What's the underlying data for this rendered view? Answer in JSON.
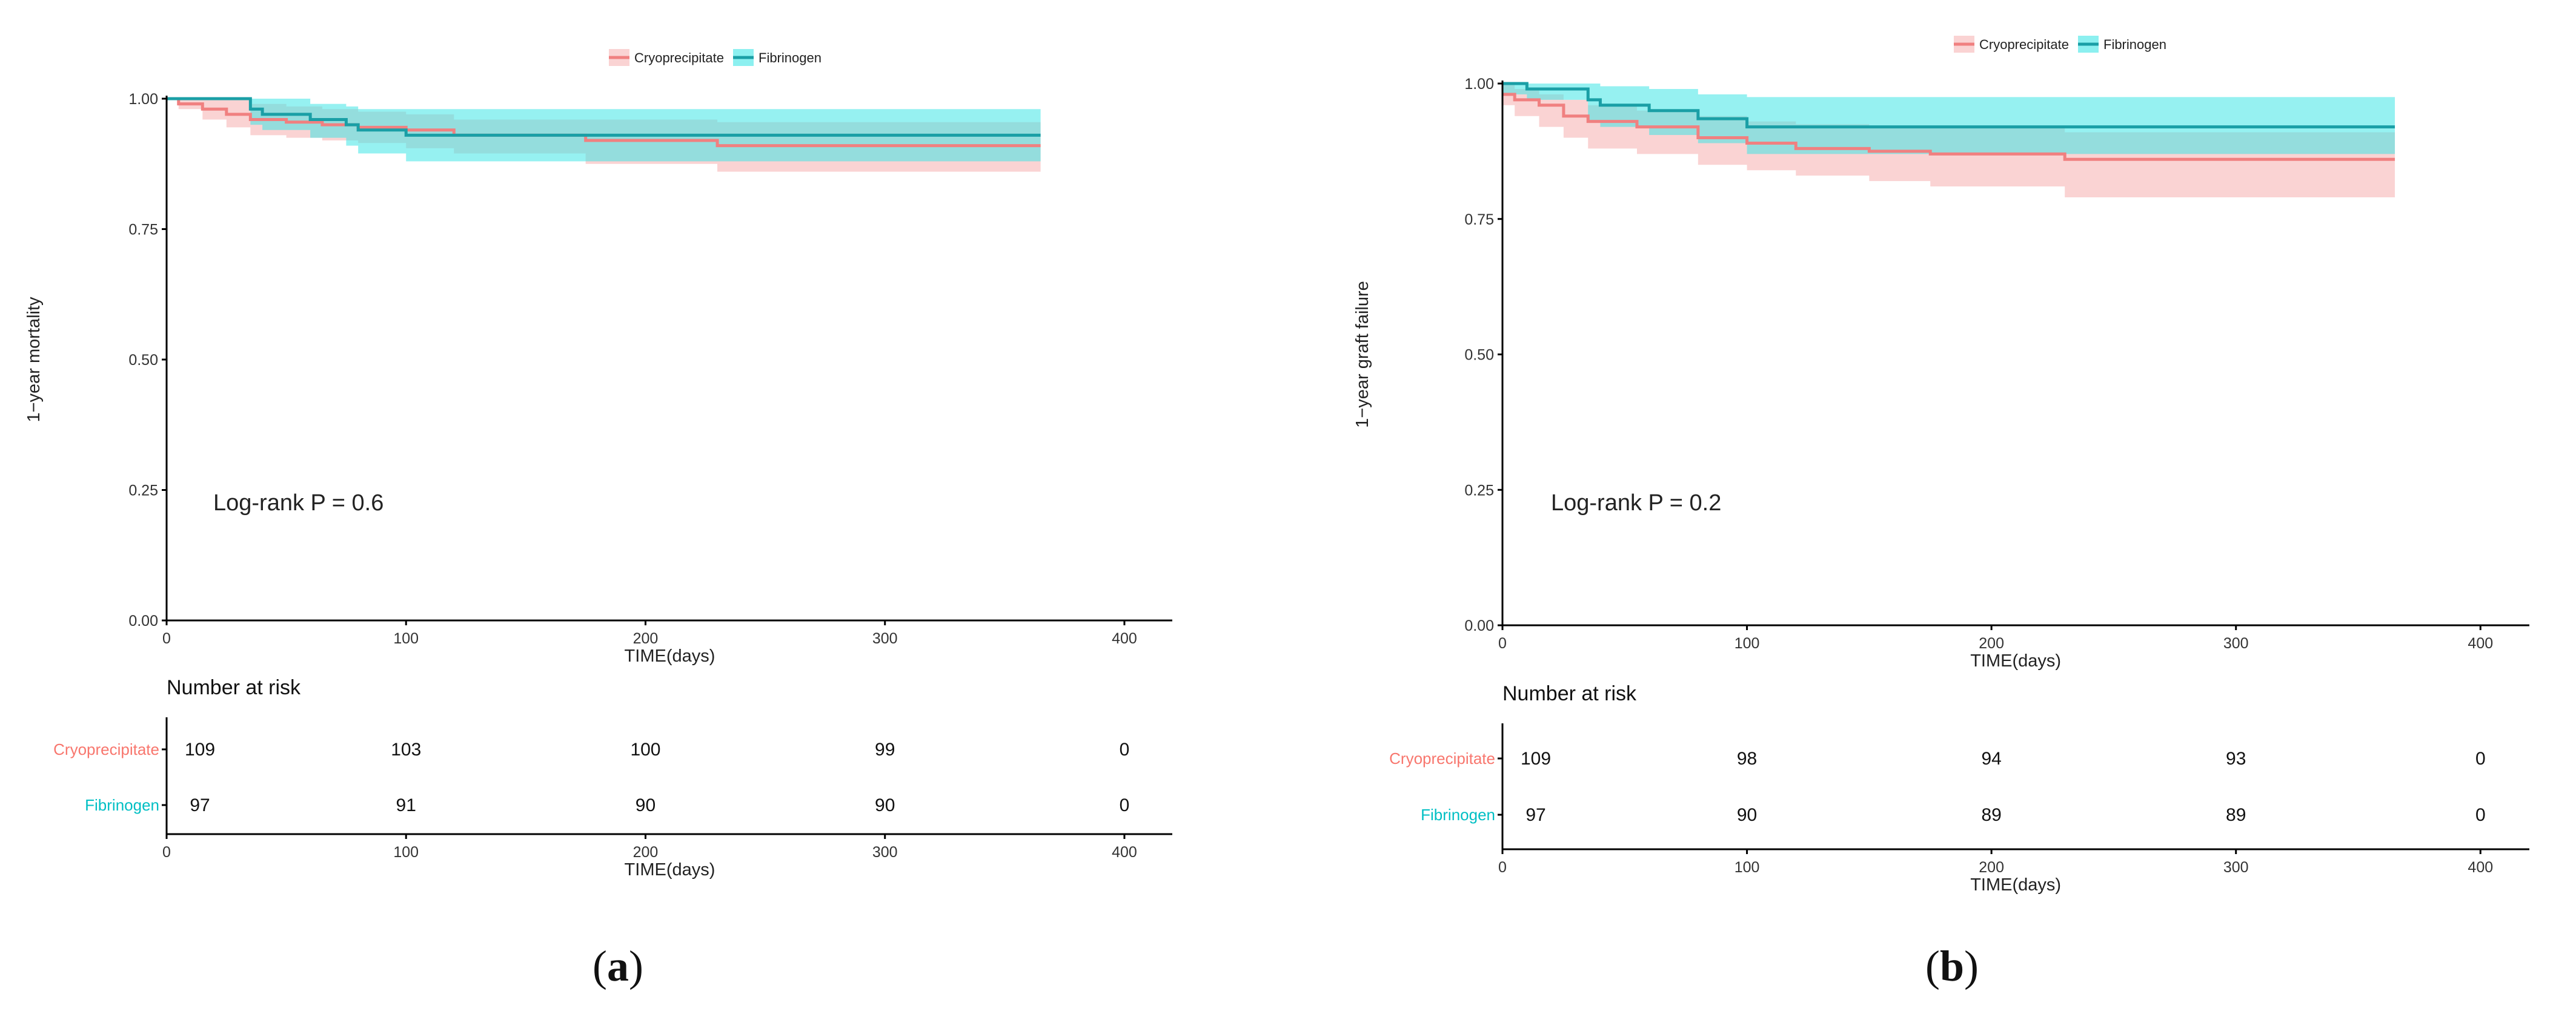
{
  "colors": {
    "cryo": "#f08080",
    "cryo_fill": "#f08080",
    "fib": "#1a9fa6",
    "fib_fill": "#3fe6e6",
    "cryo_text": "#f8766d",
    "fib_text": "#00bfc4",
    "axis": "#000000"
  },
  "chart_data": [
    {
      "type": "line",
      "panel": "(a)",
      "panel_letter": "a",
      "ylabel": "1−year mortality",
      "xlabel": "TIME(days)",
      "xlim": [
        0,
        400
      ],
      "ylim": [
        0,
        1
      ],
      "xticks": [
        "0",
        "100",
        "200",
        "300",
        "400"
      ],
      "yticks": [
        "0.00",
        "0.25",
        "0.50",
        "0.75",
        "1.00"
      ],
      "legend": [
        "Cryoprecipitate",
        "Fibrinogen"
      ],
      "annotation": "Log-rank P = 0.6",
      "series": [
        {
          "name": "Cryoprecipitate",
          "x": [
            0,
            5,
            15,
            25,
            35,
            50,
            65,
            80,
            100,
            120,
            175,
            230,
            365
          ],
          "y": [
            1.0,
            0.99,
            0.98,
            0.97,
            0.96,
            0.955,
            0.95,
            0.945,
            0.94,
            0.93,
            0.92,
            0.91,
            0.91
          ],
          "lower": [
            1.0,
            0.98,
            0.96,
            0.945,
            0.93,
            0.925,
            0.92,
            0.915,
            0.905,
            0.895,
            0.875,
            0.86,
            0.86
          ],
          "upper": [
            1.0,
            1.0,
            1.0,
            1.0,
            0.99,
            0.985,
            0.98,
            0.975,
            0.97,
            0.96,
            0.96,
            0.955,
            0.955
          ]
        },
        {
          "name": "Fibrinogen",
          "x": [
            0,
            35,
            40,
            60,
            75,
            80,
            100,
            365
          ],
          "y": [
            1.0,
            0.98,
            0.97,
            0.96,
            0.95,
            0.94,
            0.93,
            0.93
          ],
          "lower": [
            1.0,
            0.95,
            0.94,
            0.925,
            0.91,
            0.895,
            0.88,
            0.88
          ],
          "upper": [
            1.0,
            1.0,
            1.0,
            0.99,
            0.985,
            0.98,
            0.98,
            0.98
          ]
        }
      ],
      "risk_table": {
        "title": "Number at risk",
        "xlabel": "TIME(days)",
        "times": [
          0,
          100,
          200,
          300,
          400
        ],
        "rows": [
          {
            "name": "Cryoprecipitate",
            "values": [
              "109",
              "103",
              "100",
              "99",
              "0"
            ]
          },
          {
            "name": "Fibrinogen",
            "values": [
              "97",
              "91",
              "90",
              "90",
              "0"
            ]
          }
        ]
      }
    },
    {
      "type": "line",
      "panel": "(b)",
      "panel_letter": "b",
      "ylabel": "1−year graft failure",
      "xlabel": "TIME(days)",
      "xlim": [
        0,
        400
      ],
      "ylim": [
        0,
        1
      ],
      "xticks": [
        "0",
        "100",
        "200",
        "300",
        "400"
      ],
      "yticks": [
        "0.00",
        "0.25",
        "0.50",
        "0.75",
        "1.00"
      ],
      "legend": [
        "Cryoprecipitate",
        "Fibrinogen"
      ],
      "annotation": "Log-rank P = 0.2",
      "series": [
        {
          "name": "Cryoprecipitate",
          "x": [
            0,
            5,
            15,
            25,
            35,
            55,
            80,
            100,
            120,
            150,
            175,
            230,
            365
          ],
          "y": [
            0.98,
            0.97,
            0.96,
            0.94,
            0.93,
            0.92,
            0.9,
            0.89,
            0.88,
            0.875,
            0.87,
            0.86,
            0.86
          ],
          "lower": [
            0.96,
            0.94,
            0.92,
            0.9,
            0.88,
            0.87,
            0.85,
            0.84,
            0.83,
            0.82,
            0.81,
            0.79,
            0.79
          ],
          "upper": [
            1.0,
            0.99,
            0.98,
            0.97,
            0.96,
            0.95,
            0.94,
            0.93,
            0.925,
            0.92,
            0.92,
            0.91,
            0.91
          ]
        },
        {
          "name": "Fibrinogen",
          "x": [
            0,
            10,
            35,
            40,
            60,
            80,
            100,
            365
          ],
          "y": [
            1.0,
            0.99,
            0.97,
            0.96,
            0.95,
            0.935,
            0.92,
            0.92
          ],
          "lower": [
            0.98,
            0.97,
            0.93,
            0.92,
            0.905,
            0.89,
            0.87,
            0.87
          ],
          "upper": [
            1.0,
            1.0,
            1.0,
            0.995,
            0.99,
            0.98,
            0.975,
            0.975
          ]
        }
      ],
      "risk_table": {
        "title": "Number at risk",
        "xlabel": "TIME(days)",
        "times": [
          0,
          100,
          200,
          300,
          400
        ],
        "rows": [
          {
            "name": "Cryoprecipitate",
            "values": [
              "109",
              "98",
              "94",
              "93",
              "0"
            ]
          },
          {
            "name": "Fibrinogen",
            "values": [
              "97",
              "90",
              "89",
              "89",
              "0"
            ]
          }
        ]
      }
    }
  ]
}
